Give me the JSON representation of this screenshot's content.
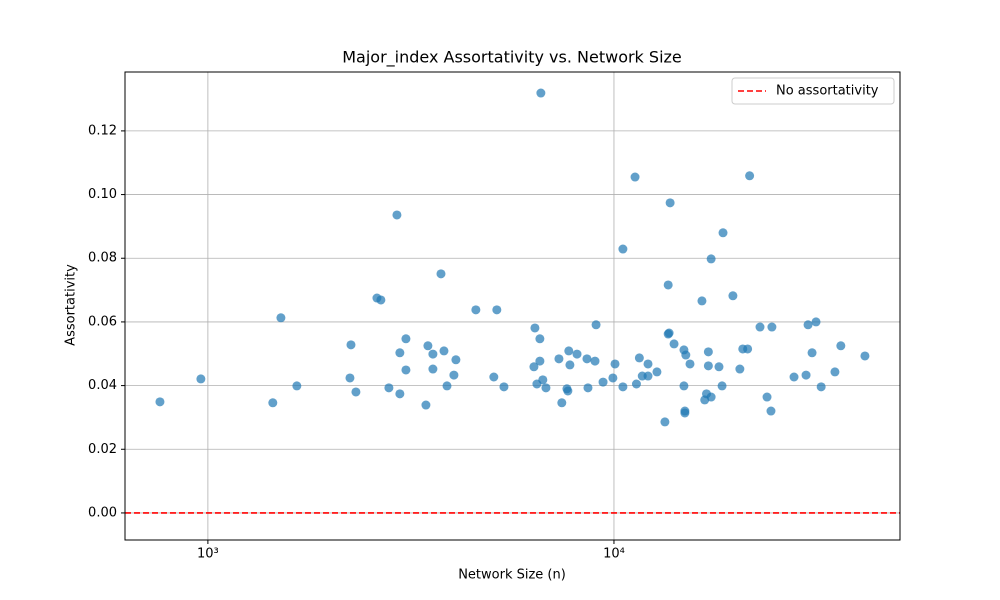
{
  "chart_data": {
    "type": "scatter",
    "title": "Major_index Assortativity vs. Network Size",
    "x_label": "Network Size (n)",
    "y_label": "Assortativity",
    "x_scale": "log",
    "grid": true,
    "color": "#1f77b4",
    "xlim": [
      625,
      50630
    ],
    "ylim": [
      -0.0085,
      0.1385
    ],
    "xticks": [
      {
        "value": 1000,
        "label": "10³"
      },
      {
        "value": 10000,
        "label": "10⁴"
      }
    ],
    "yticks": [
      {
        "value": 0,
        "label": "0.00"
      },
      0.02,
      0.04,
      0.06,
      0.08,
      {
        "value": 0.1,
        "label": "0.10"
      },
      0.12
    ],
    "reference_line": {
      "value": 0,
      "name": "No assortativity",
      "color": "#ff0000"
    },
    "legend_position": "upper right",
    "x": [
      762,
      961,
      1445,
      1513,
      1656,
      2238,
      2251,
      2315,
      2608,
      2667,
      2791,
      2921,
      2970,
      2970,
      3074,
      3074,
      3443,
      3482,
      3582,
      3582,
      3750,
      3814,
      3880,
      4035,
      4081,
      4570,
      5060,
      5147,
      5359,
      6352,
      6388,
      6460,
      6570,
      6570,
      6607,
      6680,
      6800,
      7320,
      7440,
      7660,
      7700,
      7740,
      7790,
      8110,
      8580,
      8630,
      9035,
      8980,
      9400,
      9940,
      10060,
      10520,
      10520,
      11270,
      11360,
      11550,
      11740,
      12130,
      12130,
      12760,
      13350,
      13600,
      13600,
      13750,
      13670,
      14060,
      14870,
      14870,
      14950,
      14950,
      15030,
      15390,
      16470,
      16730,
      16900,
      17080,
      17080,
      17350,
      17350,
      18140,
      18460,
      18560,
      19630,
      20420,
      20760,
      21340,
      21580,
      22890,
      23820,
      24360,
      24490,
      27760,
      29720,
      30060,
      30750,
      31450,
      32380,
      35010,
      36200,
      41500
    ],
    "values": [
      0.0349,
      0.0421,
      0.0346,
      0.0613,
      0.0399,
      0.0424,
      0.0528,
      0.038,
      0.0675,
      0.0669,
      0.0393,
      0.0936,
      0.0503,
      0.0374,
      0.0547,
      0.0449,
      0.0339,
      0.0525,
      0.0499,
      0.0452,
      0.0751,
      0.0509,
      0.0399,
      0.0433,
      0.0481,
      0.0638,
      0.0427,
      0.0638,
      0.0396,
      0.0459,
      0.0581,
      0.0405,
      0.0547,
      0.0477,
      0.1319,
      0.0418,
      0.0393,
      0.0484,
      0.0346,
      0.039,
      0.0383,
      0.0509,
      0.0465,
      0.0499,
      0.0484,
      0.0393,
      0.0591,
      0.0477,
      0.0411,
      0.0424,
      0.0468,
      0.0829,
      0.0396,
      0.1055,
      0.0405,
      0.0487,
      0.043,
      0.0468,
      0.043,
      0.0443,
      0.0286,
      0.0716,
      0.0562,
      0.0974,
      0.0565,
      0.0531,
      0.0512,
      0.0399,
      0.032,
      0.0314,
      0.0496,
      0.0468,
      0.0666,
      0.0355,
      0.0374,
      0.0506,
      0.0462,
      0.0364,
      0.0798,
      0.0459,
      0.0399,
      0.088,
      0.0682,
      0.0452,
      0.0515,
      0.0515,
      0.1059,
      0.0584,
      0.0364,
      0.032,
      0.0584,
      0.0427,
      0.0433,
      0.0591,
      0.0503,
      0.06,
      0.0396,
      0.0443,
      0.0525,
      0.0493
    ]
  }
}
